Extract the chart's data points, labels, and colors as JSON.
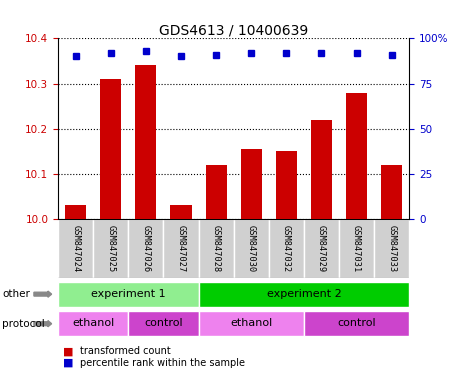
{
  "title": "GDS4613 / 10400639",
  "samples": [
    "GSM847024",
    "GSM847025",
    "GSM847026",
    "GSM847027",
    "GSM847028",
    "GSM847030",
    "GSM847032",
    "GSM847029",
    "GSM847031",
    "GSM847033"
  ],
  "bar_values": [
    10.03,
    10.31,
    10.34,
    10.03,
    10.12,
    10.155,
    10.15,
    10.22,
    10.28,
    10.12
  ],
  "dot_values": [
    90,
    92,
    93,
    90,
    91,
    92,
    92,
    92,
    92,
    91
  ],
  "ylim_left": [
    10.0,
    10.4
  ],
  "ylim_right": [
    0,
    100
  ],
  "yticks_left": [
    10.0,
    10.1,
    10.2,
    10.3,
    10.4
  ],
  "yticks_right": [
    0,
    25,
    50,
    75,
    100
  ],
  "bar_color": "#cc0000",
  "dot_color": "#0000cc",
  "bar_width": 0.6,
  "experiment_groups": [
    {
      "label": "experiment 1",
      "start": 0,
      "end": 3,
      "color": "#90ee90"
    },
    {
      "label": "experiment 2",
      "start": 4,
      "end": 9,
      "color": "#00cc00"
    }
  ],
  "protocol_groups": [
    {
      "label": "ethanol",
      "start": 0,
      "end": 1,
      "color": "#ee82ee"
    },
    {
      "label": "control",
      "start": 2,
      "end": 3,
      "color": "#cc44cc"
    },
    {
      "label": "ethanol",
      "start": 4,
      "end": 6,
      "color": "#ee82ee"
    },
    {
      "label": "control",
      "start": 7,
      "end": 9,
      "color": "#cc44cc"
    }
  ],
  "other_row_label": "other",
  "protocol_row_label": "protocol",
  "legend_bar_label": "transformed count",
  "legend_dot_label": "percentile rank within the sample",
  "tick_label_color_left": "#cc0000",
  "tick_label_color_right": "#0000cc",
  "grid_color": "#000000",
  "sample_label_bg": "#d0d0d0",
  "right_axis_pct_labels": [
    "0",
    "25",
    "50",
    "75",
    "100%"
  ]
}
